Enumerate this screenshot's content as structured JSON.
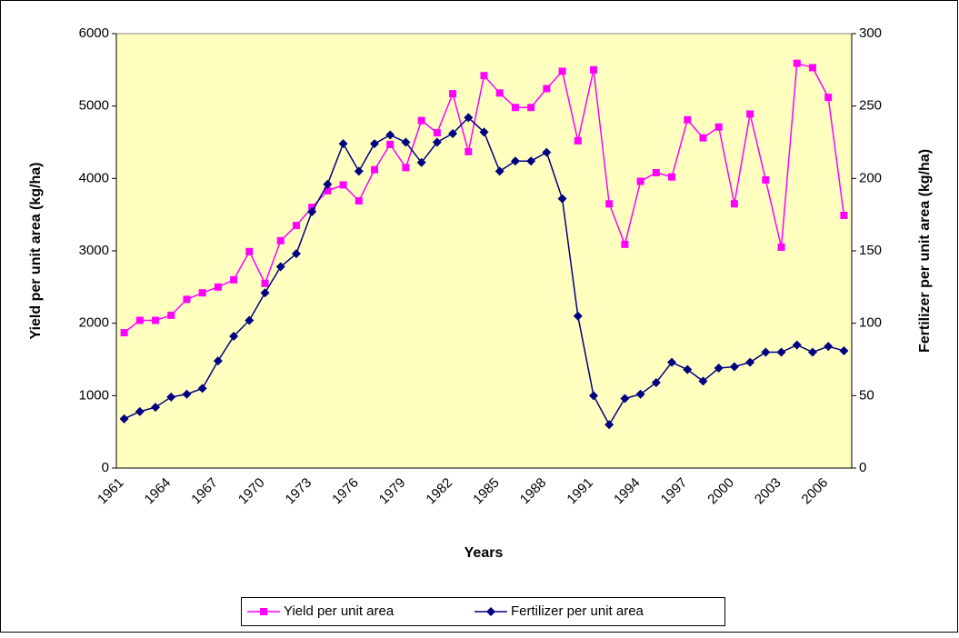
{
  "chart_data": {
    "type": "line",
    "x_label": "Years",
    "y_label": "Yield per unit area (kg/ha)",
    "y2_label": "Fertilizer per unit area (kg/ha)",
    "categories": [
      "1961",
      null,
      null,
      "1964",
      null,
      null,
      "1967",
      null,
      null,
      "1970",
      null,
      null,
      "1973",
      null,
      null,
      "1976",
      null,
      null,
      "1979",
      null,
      null,
      "1982",
      null,
      null,
      "1985",
      null,
      null,
      "1988",
      null,
      null,
      "1991",
      null,
      null,
      "1994",
      null,
      null,
      "1997",
      null,
      null,
      "2000",
      null,
      null,
      "2003",
      null,
      null,
      "2006",
      null
    ],
    "ylim": [
      0,
      6000
    ],
    "yticks": [
      0,
      1000,
      2000,
      3000,
      4000,
      5000,
      6000
    ],
    "y2lim": [
      0,
      300
    ],
    "y2ticks": [
      0,
      50,
      100,
      150,
      200,
      250,
      300
    ],
    "grid": false,
    "legend": "bottom",
    "series": [
      {
        "name": "Yield per unit area",
        "color": "#ff00ff",
        "marker": "square",
        "values": [
          1870,
          2040,
          2040,
          2110,
          2330,
          2420,
          2500,
          2600,
          2990,
          2550,
          3140,
          3350,
          3600,
          3830,
          3910,
          3690,
          4120,
          4470,
          4150,
          4800,
          4630,
          5170,
          4370,
          5420,
          5180,
          4980,
          4980,
          5240,
          5480,
          4520,
          5500,
          3650,
          3090,
          3960,
          4080,
          4020,
          4810,
          4560,
          4710,
          3650,
          4890,
          3980,
          3050,
          5590,
          5530,
          5120,
          3490
        ]
      },
      {
        "name": "Fertilizer per unit area",
        "color": "#000080",
        "marker": "diamond",
        "axis": "y2",
        "values": [
          34,
          39,
          42,
          49,
          51,
          55,
          74,
          91,
          102,
          121,
          139,
          148,
          177,
          196,
          224,
          205,
          224,
          230,
          225,
          211,
          225,
          231,
          242,
          232,
          205,
          212,
          212,
          218,
          186,
          105,
          50,
          30,
          48,
          51,
          59,
          73,
          68,
          60,
          69,
          70,
          73,
          80,
          80,
          85,
          80,
          84,
          81
        ]
      }
    ]
  }
}
